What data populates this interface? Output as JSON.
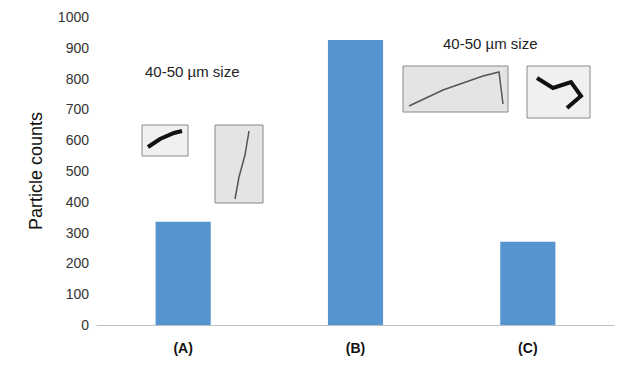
{
  "chart_data": {
    "type": "bar",
    "y_label": "Particle counts",
    "categories": [
      "(A)",
      "(B)",
      "(C)"
    ],
    "values": [
      335,
      925,
      270
    ],
    "color": "#5694d0",
    "ylim": [
      0,
      1000
    ],
    "yticks": [
      0,
      100,
      200,
      300,
      400,
      500,
      600,
      700,
      800,
      900,
      1000
    ],
    "grid": false,
    "annotations": [
      "40-50 µm size",
      "40-50 µm size"
    ]
  }
}
